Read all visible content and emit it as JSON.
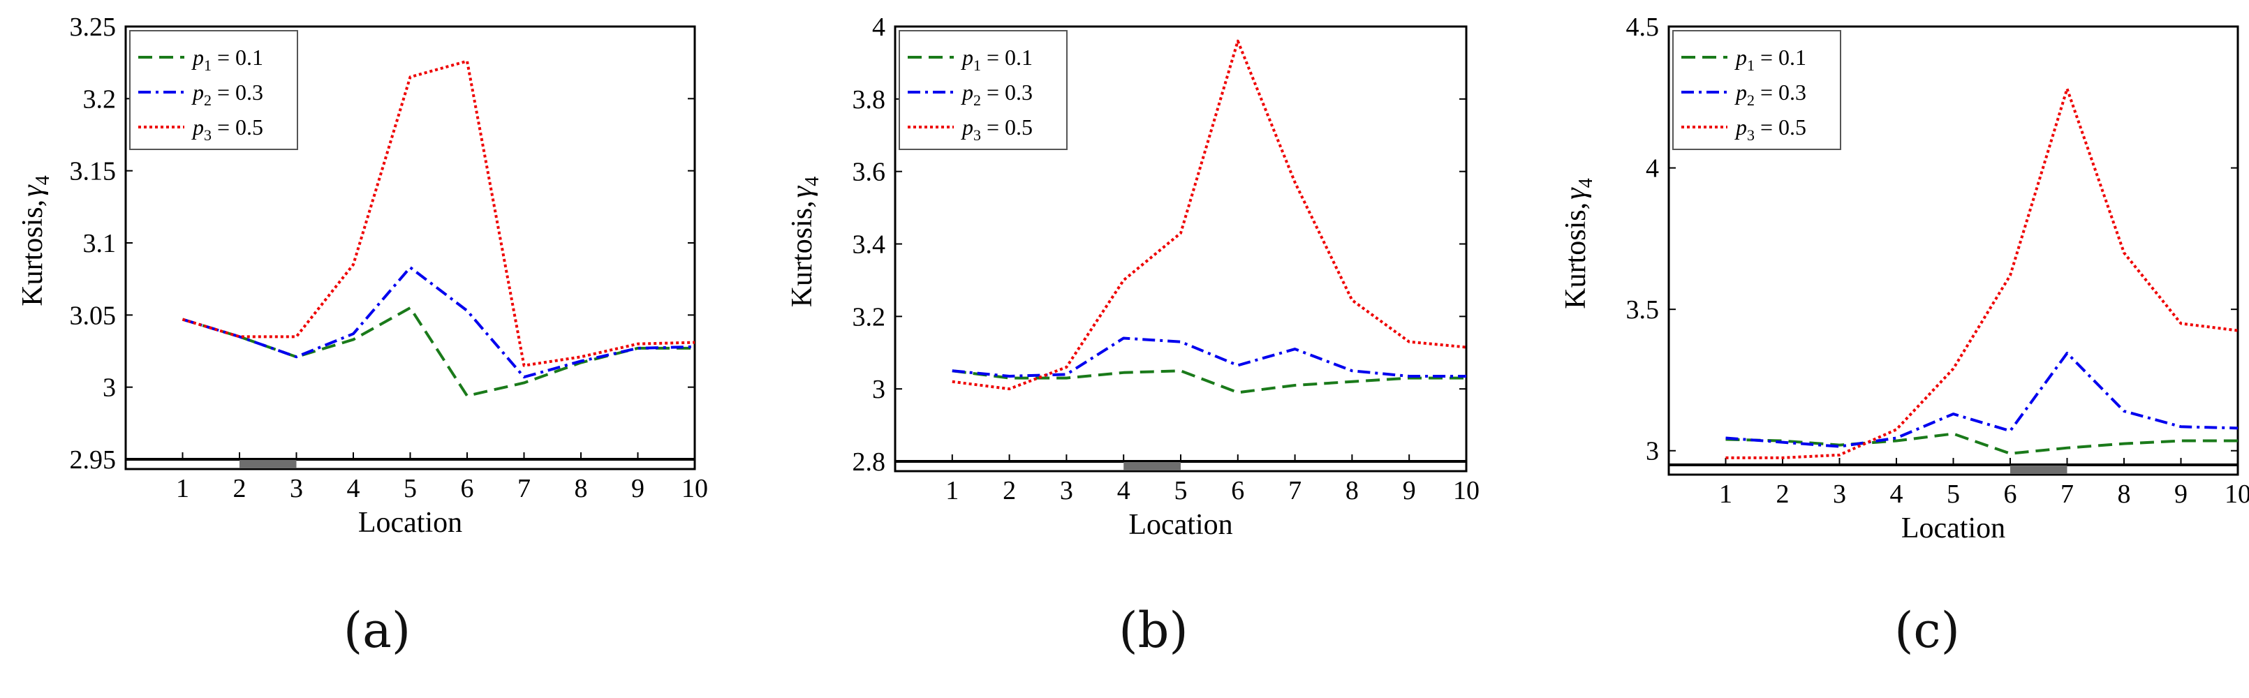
{
  "chart_data": [
    {
      "type": "line",
      "panel_label": "(a)",
      "xlabel": "Location",
      "ylabel_main": "Kurtosis,",
      "ylabel_symbol": "γ",
      "ylabel_sub": "4",
      "x": [
        1,
        2,
        3,
        4,
        5,
        6,
        7,
        8,
        9,
        10
      ],
      "ylim": [
        2.95,
        3.25
      ],
      "yticks": [
        2.95,
        3,
        3.05,
        3.1,
        3.15,
        3.2,
        3.25
      ],
      "ytick_labels": [
        "2.95",
        "3",
        "3.05",
        "3.1",
        "3.15",
        "3.2",
        "3.25"
      ],
      "xticks": [
        1,
        2,
        3,
        4,
        5,
        6,
        7,
        8,
        9,
        10
      ],
      "xtick_labels": [
        "1",
        "2",
        "3",
        "4",
        "5",
        "6",
        "7",
        "8",
        "9",
        "10"
      ],
      "highlight_span": [
        2,
        3
      ],
      "legend_position": "top-left",
      "series": [
        {
          "legend_sym": "p",
          "legend_sub": "1",
          "legend_val": " = 0.1",
          "color": "#1a7a1a",
          "dash": "dashed",
          "values": [
            3.047,
            3.035,
            3.021,
            3.033,
            3.055,
            2.994,
            3.003,
            3.017,
            3.027,
            3.027
          ]
        },
        {
          "legend_sym": "p",
          "legend_sub": "2",
          "legend_val": " = 0.3",
          "color": "#0000ee",
          "dash": "dashdot",
          "values": [
            3.047,
            3.035,
            3.021,
            3.037,
            3.083,
            3.053,
            3.007,
            3.018,
            3.027,
            3.028
          ]
        },
        {
          "legend_sym": "p",
          "legend_sub": "3",
          "legend_val": " = 0.5",
          "color": "#ee0000",
          "dash": "dotted",
          "values": [
            3.047,
            3.035,
            3.035,
            3.085,
            3.215,
            3.226,
            3.015,
            3.021,
            3.03,
            3.031
          ]
        }
      ]
    },
    {
      "type": "line",
      "panel_label": "(b)",
      "xlabel": "Location",
      "ylabel_main": "Kurtosis,",
      "ylabel_symbol": "γ",
      "ylabel_sub": "4",
      "x": [
        1,
        2,
        3,
        4,
        5,
        6,
        7,
        8,
        9,
        10
      ],
      "ylim": [
        2.8,
        4.0
      ],
      "yticks": [
        2.8,
        3,
        3.2,
        3.4,
        3.6,
        3.8,
        4
      ],
      "ytick_labels": [
        "2.8",
        "3",
        "3.2",
        "3.4",
        "3.6",
        "3.8",
        "4"
      ],
      "xticks": [
        1,
        2,
        3,
        4,
        5,
        6,
        7,
        8,
        9,
        10
      ],
      "xtick_labels": [
        "1",
        "2",
        "3",
        "4",
        "5",
        "6",
        "7",
        "8",
        "9",
        "10"
      ],
      "highlight_span": [
        4,
        5
      ],
      "legend_position": "top-left",
      "series": [
        {
          "legend_sym": "p",
          "legend_sub": "1",
          "legend_val": " = 0.1",
          "color": "#1a7a1a",
          "dash": "dashed",
          "values": [
            3.05,
            3.03,
            3.03,
            3.045,
            3.05,
            2.99,
            3.01,
            3.02,
            3.03,
            3.03
          ]
        },
        {
          "legend_sym": "p",
          "legend_sub": "2",
          "legend_val": " = 0.3",
          "color": "#0000ee",
          "dash": "dashdot",
          "values": [
            3.05,
            3.035,
            3.04,
            3.14,
            3.13,
            3.065,
            3.11,
            3.05,
            3.035,
            3.035
          ]
        },
        {
          "legend_sym": "p",
          "legend_sub": "3",
          "legend_val": " = 0.5",
          "color": "#ee0000",
          "dash": "dotted",
          "values": [
            3.02,
            3.0,
            3.06,
            3.3,
            3.43,
            3.96,
            3.57,
            3.245,
            3.13,
            3.115
          ]
        }
      ]
    },
    {
      "type": "line",
      "panel_label": "(c)",
      "xlabel": "Location",
      "ylabel_main": "Kurtosis,",
      "ylabel_symbol": "γ",
      "ylabel_sub": "4",
      "x": [
        1,
        2,
        3,
        4,
        5,
        6,
        7,
        8,
        9,
        10
      ],
      "ylim": [
        2.95,
        4.5
      ],
      "yticks": [
        3,
        3.5,
        4,
        4.5
      ],
      "ytick_labels": [
        "3",
        "3.5",
        "4",
        "4.5"
      ],
      "xticks": [
        1,
        2,
        3,
        4,
        5,
        6,
        7,
        8,
        9,
        10
      ],
      "xtick_labels": [
        "1",
        "2",
        "3",
        "4",
        "5",
        "6",
        "7",
        "8",
        "9",
        "10"
      ],
      "highlight_span": [
        6,
        7
      ],
      "legend_position": "top-left",
      "series": [
        {
          "legend_sym": "p",
          "legend_sub": "1",
          "legend_val": " = 0.1",
          "color": "#1a7a1a",
          "dash": "dashed",
          "values": [
            3.04,
            3.035,
            3.02,
            3.035,
            3.06,
            2.99,
            3.01,
            3.025,
            3.035,
            3.035
          ]
        },
        {
          "legend_sym": "p",
          "legend_sub": "2",
          "legend_val": " = 0.3",
          "color": "#0000ee",
          "dash": "dashdot",
          "values": [
            3.045,
            3.03,
            3.015,
            3.045,
            3.13,
            3.07,
            3.345,
            3.14,
            3.085,
            3.08
          ]
        },
        {
          "legend_sym": "p",
          "legend_sub": "3",
          "legend_val": " = 0.5",
          "color": "#ee0000",
          "dash": "dotted",
          "values": [
            2.975,
            2.975,
            2.985,
            3.075,
            3.29,
            3.62,
            4.28,
            3.7,
            3.45,
            3.425
          ]
        }
      ]
    }
  ]
}
